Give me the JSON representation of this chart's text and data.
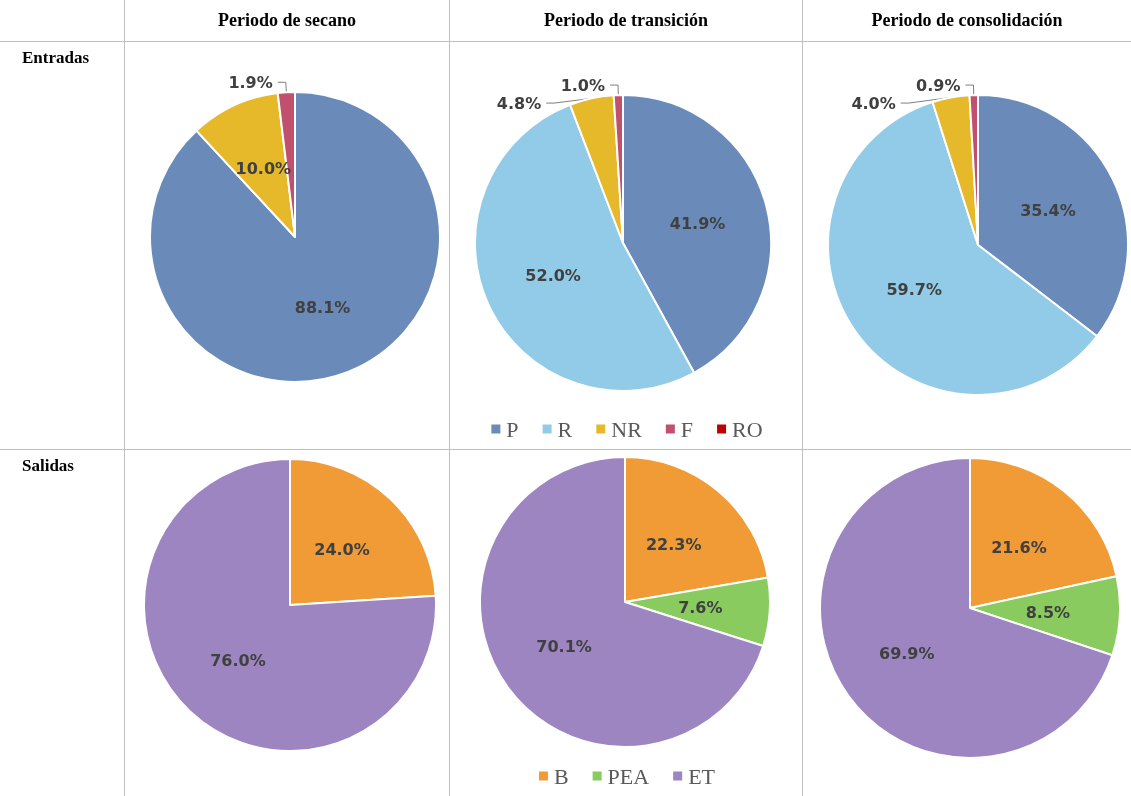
{
  "chart_data": [
    {
      "type": "pie",
      "title": "Periodo de secano",
      "annotations": [
        "Entradas"
      ],
      "categories": [
        null,
        null,
        null,
        null,
        null
      ],
      "values": [
        88.1,
        null,
        10.0,
        1.9,
        null
      ],
      "value_labels": [
        "88.1%",
        null,
        "10.0%",
        "1.9%",
        null
      ],
      "colors": [
        "#6a8bba",
        "#92cbe8",
        "#e6b92a",
        "#c0506e",
        "#c00000"
      ],
      "legend": false
    },
    {
      "type": "pie",
      "title": "Periodo de transición",
      "categories": [
        "P",
        "R",
        "NR",
        "F",
        "RO"
      ],
      "values": [
        41.9,
        52.0,
        4.8,
        1.0,
        null
      ],
      "value_labels": [
        "41.9%",
        "52.0%",
        "4.8%",
        "1.0%",
        null
      ],
      "colors": [
        "#6a8bba",
        "#92cbe8",
        "#e6b92a",
        "#c0506e",
        "#c00000"
      ],
      "legend": "bottom"
    },
    {
      "type": "pie",
      "title": "Periodo de consolidación",
      "categories": [
        null,
        null,
        null,
        null,
        null
      ],
      "values": [
        35.4,
        59.7,
        4.0,
        0.9,
        null
      ],
      "value_labels": [
        "35.4%",
        "59.7%",
        "4.0%",
        "0.9%",
        null
      ],
      "colors": [
        "#6a8bba",
        "#92cbe8",
        "#e6b92a",
        "#c0506e",
        "#c00000"
      ],
      "legend": false
    },
    {
      "type": "pie",
      "annotations": [
        "Salidas"
      ],
      "categories": [
        null,
        null,
        null
      ],
      "values": [
        24.0,
        null,
        76.0
      ],
      "value_labels": [
        "24.0%",
        null,
        "76.0%"
      ],
      "colors": [
        "#f09b35",
        "#8acb5f",
        "#9c85c0"
      ],
      "legend": false
    },
    {
      "type": "pie",
      "categories": [
        "B",
        "PEA",
        "ET"
      ],
      "values": [
        22.3,
        7.6,
        70.1
      ],
      "value_labels": [
        "22.3%",
        "7.6%",
        "70.1%"
      ],
      "colors": [
        "#f09b35",
        "#8acb5f",
        "#9c85c0"
      ],
      "legend": "bottom"
    },
    {
      "type": "pie",
      "categories": [
        null,
        null,
        null
      ],
      "values": [
        21.6,
        8.5,
        69.9
      ],
      "value_labels": [
        "21.6%",
        "8.5%",
        "69.9%"
      ],
      "colors": [
        "#f09b35",
        "#8acb5f",
        "#9c85c0"
      ],
      "legend": false
    }
  ]
}
